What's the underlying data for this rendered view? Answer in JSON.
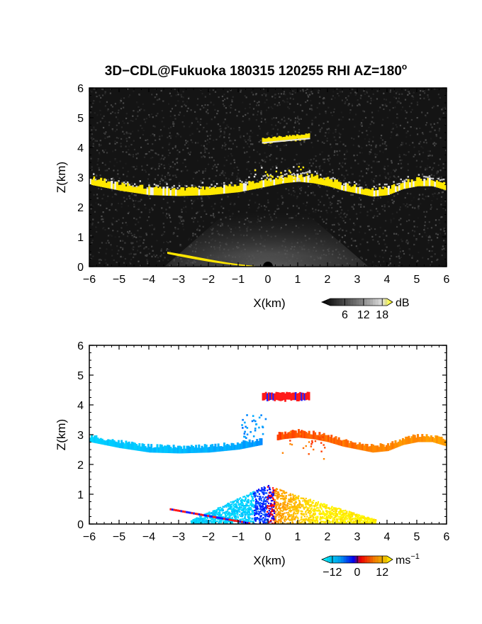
{
  "title": "3D−CDL@Fukuoka 180315 120255 RHI AZ=180",
  "title_sup": "o",
  "chart_data": [
    {
      "type": "heatmap",
      "quantity": "backscatter intensity",
      "xlabel": "X(km)",
      "ylabel": "Z(km)",
      "xlim": [
        -6,
        6
      ],
      "ylim": [
        0,
        6
      ],
      "x_ticks": [
        "−6",
        "−5",
        "−4",
        "−3",
        "−2",
        "−1",
        "0",
        "1",
        "2",
        "3",
        "4",
        "5",
        "6"
      ],
      "y_ticks": [
        "0",
        "1",
        "2",
        "3",
        "4",
        "5",
        "6"
      ],
      "background_color": "#141414",
      "colorbar": {
        "unit": "dB",
        "tick_labels": [
          "6",
          "12",
          "18"
        ],
        "range": [
          0,
          20
        ],
        "colormap": "gray-to-yellow"
      },
      "features": [
        {
          "name": "cloud base layer",
          "x": [
            -6,
            -5,
            -4,
            -3,
            -2,
            -1,
            -0.5,
            0,
            0.5,
            1,
            1.5,
            2,
            2.5,
            3,
            3.5,
            4,
            4.5,
            5,
            5.5,
            6
          ],
          "z": [
            2.8,
            2.6,
            2.45,
            2.42,
            2.45,
            2.55,
            2.65,
            2.75,
            2.85,
            2.9,
            2.85,
            2.75,
            2.6,
            2.5,
            2.4,
            2.45,
            2.65,
            2.75,
            2.75,
            2.6
          ],
          "value_db": 18
        },
        {
          "name": "upper cloud layer",
          "x": [
            -0.2,
            1.4
          ],
          "z": [
            4.2,
            4.35
          ],
          "value_db": 18
        },
        {
          "name": "boundary layer echo",
          "x": [
            -2.5,
            2.5
          ],
          "z": [
            0,
            1.0
          ],
          "value_db": 10
        },
        {
          "name": "low echo streak",
          "x": [
            -3.3,
            -0.6
          ],
          "z": [
            0.5,
            0.02
          ],
          "value_db": 18
        }
      ]
    },
    {
      "type": "heatmap",
      "quantity": "radial velocity",
      "xlabel": "X(km)",
      "ylabel": "Z(km)",
      "xlim": [
        -6,
        6
      ],
      "ylim": [
        0,
        6
      ],
      "x_ticks": [
        "−6",
        "−5",
        "−4",
        "−3",
        "−2",
        "−1",
        "0",
        "1",
        "2",
        "3",
        "4",
        "5",
        "6"
      ],
      "y_ticks": [
        "0",
        "1",
        "2",
        "3",
        "4",
        "5",
        "6"
      ],
      "background_color": "#ffffff",
      "colorbar": {
        "unit": "ms",
        "unit_sup": "−1",
        "tick_labels": [
          "−12",
          "0",
          "12"
        ],
        "range": [
          -15,
          15
        ],
        "colormap": "cyan-blue-red-yellow"
      },
      "features": [
        {
          "name": "cloud base layer west",
          "x": [
            -6,
            -0.3
          ],
          "z": [
            2.45,
            2.8
          ],
          "velocity": -8
        },
        {
          "name": "cloud base layer east",
          "x": [
            0.3,
            6
          ],
          "z": [
            2.55,
            3.0
          ],
          "velocity": 8
        },
        {
          "name": "upper cloud layer",
          "x": [
            -0.2,
            1.4
          ],
          "z": [
            4.2,
            4.45
          ],
          "velocity": 6
        },
        {
          "name": "boundary layer west",
          "x": [
            -2.5,
            -0.1
          ],
          "z": [
            0,
            1.2
          ],
          "velocity": -10
        },
        {
          "name": "boundary layer east",
          "x": [
            0.1,
            3.5
          ],
          "z": [
            0,
            1.2
          ],
          "velocity": 10
        }
      ]
    }
  ]
}
